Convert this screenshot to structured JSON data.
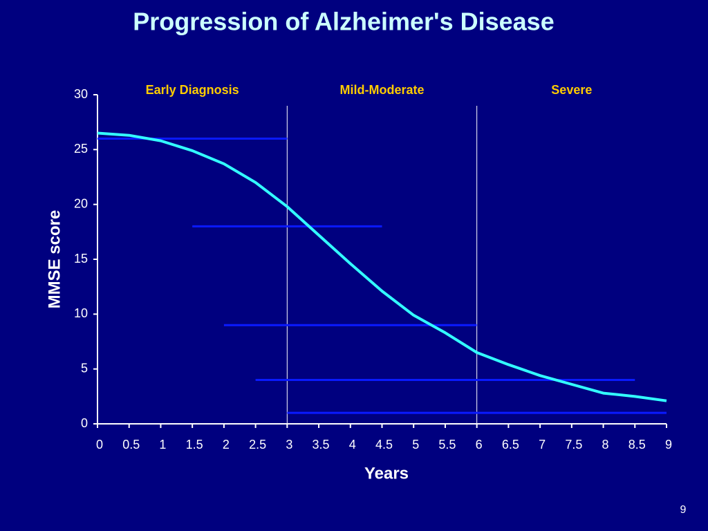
{
  "chart_data": {
    "type": "line",
    "title": "Progression of Alzheimer's Disease",
    "xlabel": "Years",
    "ylabel": "MMSE score",
    "x": [
      0,
      0.5,
      1,
      1.5,
      2,
      2.5,
      3,
      3.5,
      4,
      4.5,
      5,
      5.5,
      6,
      6.5,
      7,
      7.5,
      8,
      8.5,
      9
    ],
    "values": [
      26.5,
      26.3,
      25.8,
      24.9,
      23.7,
      22.0,
      19.8,
      17.2,
      14.6,
      12.1,
      9.9,
      8.3,
      6.5,
      5.4,
      4.4,
      3.6,
      2.8,
      2.5,
      2.1
    ],
    "color": "#33ffff",
    "segments": [
      {
        "x": [
          0,
          3
        ],
        "y": 26
      },
      {
        "x": [
          1.5,
          4.5
        ],
        "y": 18
      },
      {
        "x": [
          2,
          6
        ],
        "y": 9
      },
      {
        "x": [
          2.5,
          8.5
        ],
        "y": 4
      },
      {
        "x": [
          3,
          9
        ],
        "y": 1
      }
    ],
    "segment_color": "#0a1aff",
    "stages": [
      "Early Diagnosis",
      "Mild-Moderate",
      "Severe"
    ],
    "stage_boundaries": [
      3,
      6
    ],
    "xlim": [
      0,
      9
    ],
    "ylim": [
      0,
      30
    ],
    "xticks": [
      0,
      0.5,
      1,
      1.5,
      2,
      2.5,
      3,
      3.5,
      4,
      4.5,
      5,
      5.5,
      6,
      6.5,
      7,
      7.5,
      8,
      8.5,
      9
    ],
    "yticks": [
      0,
      5,
      10,
      15,
      20,
      25,
      30
    ]
  },
  "page_number": "9"
}
